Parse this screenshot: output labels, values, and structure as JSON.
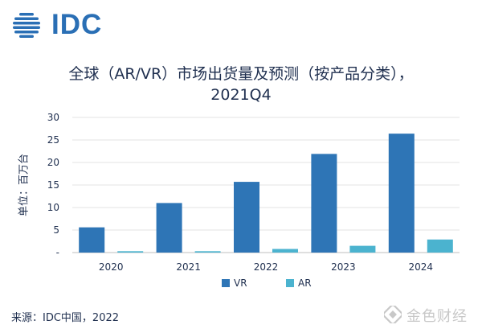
{
  "logo": {
    "text": "IDC",
    "icon": "idc-globe-icon",
    "color": "#2a6fb5"
  },
  "title_line1": "全球（AR/VR）市场出货量及预测（按产品分类），",
  "title_line2": "2021Q4",
  "source": "来源：IDC中国，2022",
  "watermark": {
    "text": "金色财经",
    "icon": "golden-finance-icon"
  },
  "chart_data": {
    "type": "bar",
    "title": "全球（AR/VR）市场出货量及预测（按产品分类），2021Q4",
    "ylabel": "单位：百万台",
    "xlabel": "",
    "categories": [
      "2020",
      "2021",
      "2022",
      "2023",
      "2024"
    ],
    "series": [
      {
        "name": "VR",
        "values": [
          5.6,
          11.0,
          15.7,
          21.9,
          26.4
        ],
        "color": "#2e75b6"
      },
      {
        "name": "AR",
        "values": [
          0.3,
          0.3,
          0.8,
          1.5,
          2.9
        ],
        "color": "#4bb3cf"
      }
    ],
    "ylim": [
      0,
      30
    ],
    "yticks": [
      "-",
      "5",
      "10",
      "15",
      "20",
      "25",
      "30"
    ],
    "grid": true,
    "legend_position": "bottom-center"
  }
}
